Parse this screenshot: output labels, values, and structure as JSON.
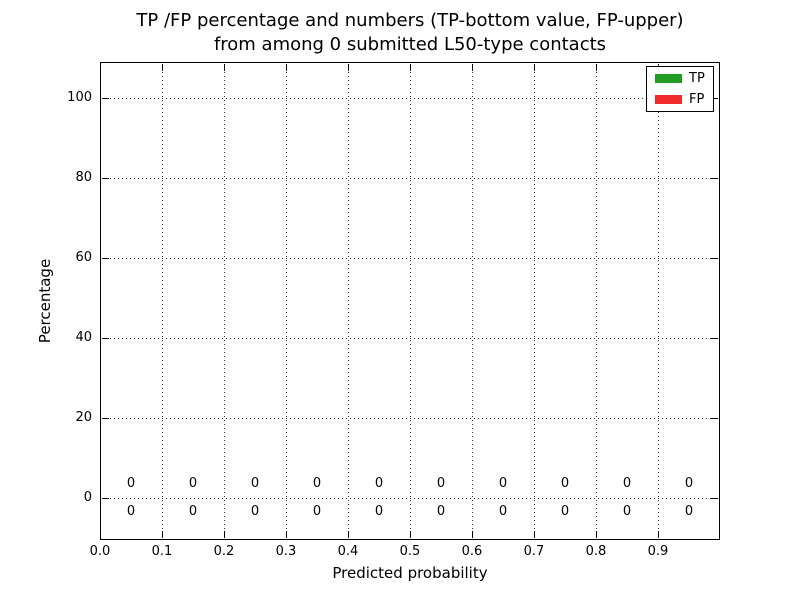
{
  "chart_data": {
    "type": "bar",
    "title": "TP /FP percentage and numbers (TP-bottom value, FP-upper) from among 0 submitted L50-type contacts",
    "title_lines": [
      "TP /FP percentage and numbers (TP-bottom value, FP-upper)",
      "from among 0 submitted L50-type contacts"
    ],
    "xlabel": "Predicted probability",
    "ylabel": "Percentage",
    "xlim": [
      0.0,
      1.0
    ],
    "ylim": [
      -10.5,
      109.0
    ],
    "grid": true,
    "grid_style": "dotted",
    "x_ticks": [
      {
        "value": 0.0,
        "label": "0.0"
      },
      {
        "value": 0.1,
        "label": "0.1"
      },
      {
        "value": 0.2,
        "label": "0.2"
      },
      {
        "value": 0.3,
        "label": "0.3"
      },
      {
        "value": 0.4,
        "label": "0.4"
      },
      {
        "value": 0.5,
        "label": "0.5"
      },
      {
        "value": 0.6,
        "label": "0.6"
      },
      {
        "value": 0.7,
        "label": "0.7"
      },
      {
        "value": 0.8,
        "label": "0.8"
      },
      {
        "value": 0.9,
        "label": "0.9"
      }
    ],
    "y_ticks": [
      {
        "value": 0,
        "label": "0"
      },
      {
        "value": 20,
        "label": "20"
      },
      {
        "value": 40,
        "label": "40"
      },
      {
        "value": 60,
        "label": "60"
      },
      {
        "value": 80,
        "label": "80"
      },
      {
        "value": 100,
        "label": "100"
      }
    ],
    "x_gridlines": [
      0.1,
      0.2,
      0.3,
      0.4,
      0.5,
      0.6,
      0.7,
      0.8,
      0.9
    ],
    "y_gridlines": [
      0,
      20,
      40,
      60,
      80,
      100
    ],
    "bar_centers": [
      0.05,
      0.15,
      0.25,
      0.35,
      0.45,
      0.55,
      0.65,
      0.75,
      0.85,
      0.95
    ],
    "series": [
      {
        "name": "TP",
        "color": "#229b22",
        "values": [
          0,
          0,
          0,
          0,
          0,
          0,
          0,
          0,
          0,
          0
        ]
      },
      {
        "name": "FP",
        "color": "#f12b2b",
        "values": [
          0,
          0,
          0,
          0,
          0,
          0,
          0,
          0,
          0,
          0
        ]
      }
    ],
    "value_labels": {
      "fp_upper": [
        "0",
        "0",
        "0",
        "0",
        "0",
        "0",
        "0",
        "0",
        "0",
        "0"
      ],
      "tp_bottom": [
        "0",
        "0",
        "0",
        "0",
        "0",
        "0",
        "0",
        "0",
        "0",
        "0"
      ]
    },
    "legend": {
      "position": "upper right",
      "entries": [
        {
          "label": "TP",
          "color": "#229b22"
        },
        {
          "label": "FP",
          "color": "#f12b2b"
        }
      ]
    }
  }
}
